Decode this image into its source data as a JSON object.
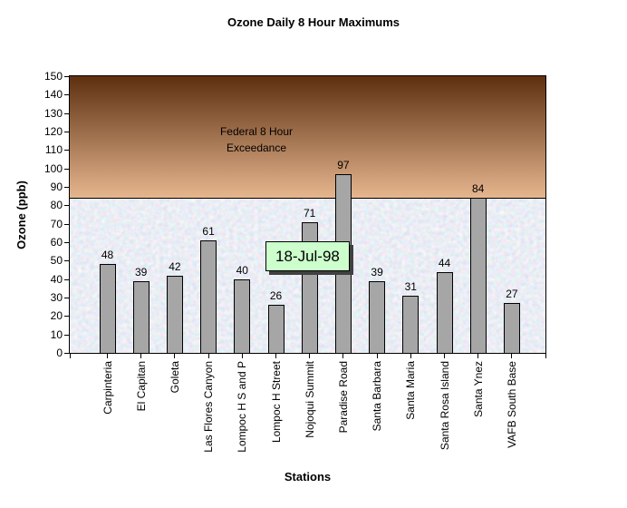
{
  "chart_data": {
    "type": "bar",
    "title": "Ozone Daily 8 Hour Maximums",
    "xlabel": "Stations",
    "ylabel": "Ozone (ppb)",
    "ylim": [
      0,
      150
    ],
    "yticks": [
      0,
      10,
      20,
      30,
      40,
      50,
      60,
      70,
      80,
      90,
      100,
      110,
      120,
      130,
      140,
      150
    ],
    "grid": false,
    "legend": "none",
    "categories": [
      "Carpinteria",
      "El Capitan",
      "Goleta",
      "Las Flores Canyon",
      "Lompoc H S and P",
      "Lompoc H Street",
      "Nojoqui Summit",
      "Paradise Road",
      "Santa Barbara",
      "Santa Maria",
      "Santa Rosa Island",
      "Santa Ynez",
      "VAFB South Base"
    ],
    "values": [
      48,
      39,
      42,
      61,
      40,
      26,
      71,
      97,
      39,
      31,
      44,
      84,
      27
    ],
    "annotations": {
      "date_label": "18-Jul-98",
      "exceedance_line1": "Federal 8 Hour",
      "exceedance_line2": "Exceedance",
      "exceedance_threshold": 84
    },
    "colors": {
      "bar_fill": "#a6a6a6",
      "bar_border": "#000000",
      "exceedance_gradient_top": "#5e2f10",
      "exceedance_gradient_bottom": "#e5b68e",
      "below_zone_base": "#ccd9ee",
      "date_box_bg": "#ccffcc",
      "date_box_shadow": "#404040",
      "text": "#000000"
    }
  }
}
